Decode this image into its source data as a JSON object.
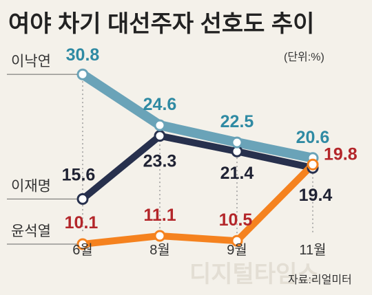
{
  "chart_data": {
    "type": "line",
    "title": "여야 차기 대선주자 선호도 추이",
    "unit": "(단위:%)",
    "source": "자료:리얼미터",
    "watermark": "디지털타임스",
    "categories": [
      "6월",
      "8월",
      "9월",
      "11월"
    ],
    "series": [
      {
        "name": "이낙연",
        "values": [
          30.8,
          24.6,
          22.5,
          20.6
        ],
        "color": "#6aa3b8",
        "label_color": "#2f8aa3"
      },
      {
        "name": "이재명",
        "values": [
          15.6,
          23.3,
          21.4,
          19.4
        ],
        "color": "#27304d",
        "label_color": "#1f2233"
      },
      {
        "name": "윤석열",
        "values": [
          10.1,
          11.1,
          10.5,
          19.8
        ],
        "color": "#f5821f",
        "label_color": "#b3262a"
      }
    ],
    "label_texts": [
      [
        "30.8",
        "24.6",
        "22.5",
        "20.6"
      ],
      [
        "15.6",
        "23.3",
        "21.4",
        "19.4"
      ],
      [
        "10.1",
        "11.1",
        "10.5",
        "19.8"
      ]
    ],
    "ylim": [
      8,
      34
    ],
    "grid": false,
    "legend": "left (labels beside lines)"
  }
}
